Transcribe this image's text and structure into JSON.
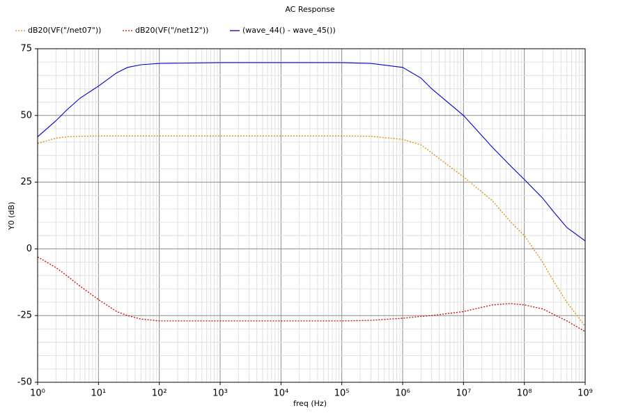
{
  "chart_data": {
    "type": "line",
    "title": "AC Response",
    "xlabel": "freq (Hz)",
    "ylabel": "Y0 (dB)",
    "xscale": "log",
    "grid": true,
    "legend": "top",
    "x": [
      1,
      2,
      3,
      5,
      10,
      20,
      30,
      50,
      100,
      1000,
      10000,
      100000,
      300000,
      1000000,
      2000000,
      3000000,
      10000000,
      30000000,
      60000000,
      100000000,
      200000000,
      300000000,
      500000000,
      1000000000
    ],
    "series": [
      {
        "name": "dB20(VF(\"/net07\"))",
        "color": "#e08a00",
        "linestyle": "dotted",
        "values": [
          39.5,
          41.5,
          42,
          42.2,
          42.3,
          42.3,
          42.3,
          42.3,
          42.3,
          42.3,
          42.3,
          42.3,
          42.2,
          41,
          39,
          36,
          27,
          18,
          10,
          5,
          -5,
          -12,
          -20,
          -29
        ]
      },
      {
        "name": "dB20(VF(\"/net12\"))",
        "color": "#d00000",
        "linestyle": "dotted",
        "values": [
          -3,
          -7,
          -10,
          -14,
          -19,
          -23.5,
          -25,
          -26.3,
          -27,
          -27,
          -27,
          -27,
          -26.8,
          -26,
          -25.3,
          -25,
          -23.5,
          -21,
          -20.5,
          -21,
          -22.5,
          -24.5,
          -27,
          -31
        ]
      },
      {
        "name": "(wave_44() - wave_45())",
        "color": "#0000d0",
        "linestyle": "solid",
        "values": [
          42,
          48,
          52,
          56.5,
          61,
          66,
          68,
          69,
          69.5,
          69.8,
          69.8,
          69.8,
          69.5,
          68,
          64,
          60,
          50,
          38,
          31,
          26,
          19,
          14,
          8,
          3
        ]
      }
    ],
    "xlim": [
      1,
      1000000000
    ],
    "xticks": [
      {
        "value": 1,
        "label": "10⁰"
      },
      {
        "value": 10,
        "label": "10¹"
      },
      {
        "value": 100,
        "label": "10²"
      },
      {
        "value": 1000,
        "label": "10³"
      },
      {
        "value": 10000,
        "label": "10⁴"
      },
      {
        "value": 100000,
        "label": "10⁵"
      },
      {
        "value": 1000000,
        "label": "10⁶"
      },
      {
        "value": 10000000,
        "label": "10⁷"
      },
      {
        "value": 100000000,
        "label": "10⁸"
      },
      {
        "value": 1000000000,
        "label": "10⁹"
      }
    ],
    "ylim": [
      -50,
      75
    ],
    "yticks": [
      -50,
      -25,
      0,
      25,
      50,
      75
    ]
  }
}
